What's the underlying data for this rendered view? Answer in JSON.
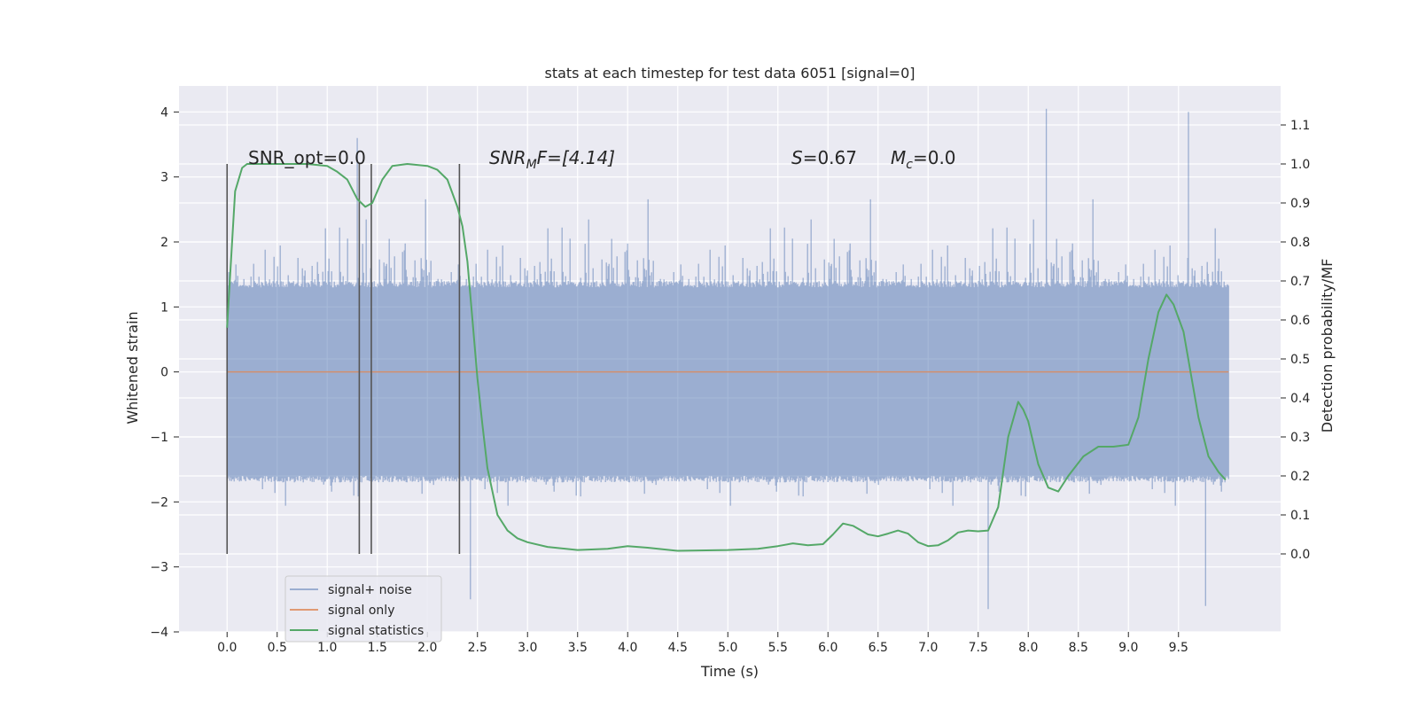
{
  "chart_data": {
    "type": "line",
    "title": "stats at each timestep for test data 6051 [signal=0]",
    "xlabel": "Time (s)",
    "ylabel": "Whitened strain",
    "ylabel_right": "Detection probability/MF",
    "xlim": [
      -0.48,
      10.52
    ],
    "ylim": [
      -4.0,
      4.4
    ],
    "ylim_right": [
      -0.2,
      1.2
    ],
    "x_ticks": [
      "0.0",
      "0.5",
      "1.0",
      "1.5",
      "2.0",
      "2.5",
      "3.0",
      "3.5",
      "4.0",
      "4.5",
      "5.0",
      "5.5",
      "6.0",
      "6.5",
      "7.0",
      "7.5",
      "8.0",
      "8.5",
      "9.0",
      "9.5"
    ],
    "y_ticks": [
      "4",
      "3",
      "2",
      "1",
      "0",
      "−1",
      "−2",
      "−3",
      "−4"
    ],
    "y_ticks_right": [
      "1.1",
      "1.0",
      "0.9",
      "0.8",
      "0.7",
      "0.6",
      "0.5",
      "0.4",
      "0.3",
      "0.2",
      "0.1",
      "0.0"
    ],
    "grid": true,
    "background": "#eaeaf2",
    "legend_position": "bottom-left",
    "annotations": {
      "snr_opt": "SNR_opt=0.0",
      "snr_mf_main": "SNR",
      "snr_mf_sub": "M",
      "snr_mf_tail": "F=[4.14]",
      "s_var": "S",
      "s_value": "=0.67",
      "mc_var": "M",
      "mc_sub": "c",
      "mc_value": "=0.0"
    },
    "vertical_markers": [
      {
        "x": 0.0,
        "y_from": -2.8,
        "y_to": 3.2
      },
      {
        "x": 1.32,
        "y_from": -2.8,
        "y_to": 3.2
      },
      {
        "x": 1.44,
        "y_from": -2.8,
        "y_to": 3.2
      },
      {
        "x": 2.32,
        "y_from": -2.8,
        "y_to": 3.2
      }
    ],
    "series": [
      {
        "name": "signal+ noise",
        "color": "#4c72b0",
        "x_range": [
          0.0,
          10.0
        ],
        "band_core": [
          -1.7,
          1.4
        ],
        "notable_peaks": [
          {
            "x": 8.18,
            "y": 4.05
          },
          {
            "x": 9.6,
            "y": 4.0
          },
          {
            "x": 1.3,
            "y": 3.6
          },
          {
            "x": 7.6,
            "y": -3.65
          },
          {
            "x": 9.77,
            "y": -3.6
          },
          {
            "x": 2.43,
            "y": -3.5
          }
        ]
      },
      {
        "name": "signal only",
        "color": "#dd8452",
        "x": [
          0.0,
          10.0
        ],
        "values": [
          0.0,
          0.0
        ]
      },
      {
        "name": "signal statistics",
        "color": "#55a868",
        "axis": "right",
        "x": [
          0.0,
          0.05,
          0.08,
          0.15,
          0.2,
          0.3,
          0.5,
          0.8,
          1.0,
          1.1,
          1.2,
          1.3,
          1.38,
          1.45,
          1.55,
          1.65,
          1.8,
          2.0,
          2.1,
          2.2,
          2.3,
          2.35,
          2.4,
          2.45,
          2.5,
          2.55,
          2.6,
          2.7,
          2.8,
          2.9,
          3.0,
          3.2,
          3.5,
          3.8,
          4.0,
          4.2,
          4.5,
          5.0,
          5.3,
          5.5,
          5.65,
          5.8,
          5.95,
          6.05,
          6.15,
          6.25,
          6.4,
          6.5,
          6.6,
          6.7,
          6.8,
          6.9,
          7.0,
          7.1,
          7.2,
          7.3,
          7.4,
          7.5,
          7.6,
          7.7,
          7.8,
          7.9,
          7.95,
          8.0,
          8.1,
          8.2,
          8.3,
          8.4,
          8.55,
          8.7,
          8.85,
          9.0,
          9.1,
          9.2,
          9.3,
          9.38,
          9.45,
          9.55,
          9.7,
          9.8,
          9.9,
          9.97
        ],
        "values": [
          0.58,
          0.8,
          0.93,
          0.99,
          1.0,
          1.0,
          1.0,
          1.0,
          0.995,
          0.98,
          0.96,
          0.91,
          0.89,
          0.9,
          0.96,
          0.995,
          1.0,
          0.995,
          0.985,
          0.96,
          0.89,
          0.84,
          0.75,
          0.6,
          0.45,
          0.33,
          0.22,
          0.1,
          0.06,
          0.04,
          0.03,
          0.018,
          0.01,
          0.013,
          0.02,
          0.016,
          0.008,
          0.01,
          0.013,
          0.02,
          0.027,
          0.022,
          0.025,
          0.05,
          0.078,
          0.072,
          0.05,
          0.045,
          0.052,
          0.06,
          0.052,
          0.03,
          0.02,
          0.022,
          0.035,
          0.055,
          0.06,
          0.058,
          0.06,
          0.12,
          0.3,
          0.39,
          0.37,
          0.34,
          0.23,
          0.17,
          0.16,
          0.2,
          0.25,
          0.275,
          0.275,
          0.28,
          0.35,
          0.5,
          0.62,
          0.665,
          0.64,
          0.57,
          0.35,
          0.25,
          0.21,
          0.19
        ]
      }
    ]
  }
}
